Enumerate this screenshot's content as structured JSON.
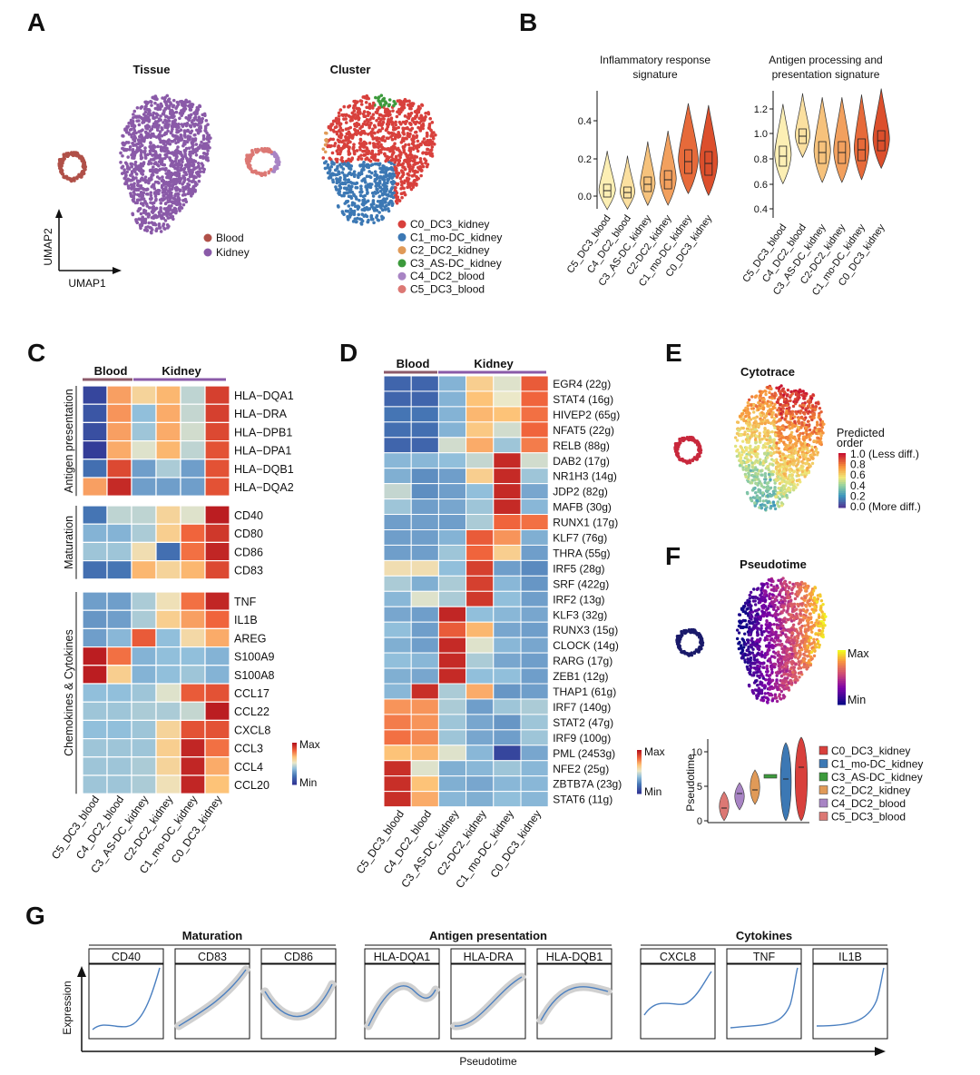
{
  "panels": {
    "a": "A",
    "b": "B",
    "c": "C",
    "d": "D",
    "e": "E",
    "f": "F",
    "g": "G"
  },
  "panelA": {
    "tissue_title": "Tissue",
    "cluster_title": "Cluster",
    "umap_x": "UMAP1",
    "umap_y": "UMAP2",
    "tissue_legend": [
      {
        "label": "Blood",
        "color": "#b05048"
      },
      {
        "label": "Kidney",
        "color": "#8a5aa8"
      }
    ],
    "cluster_legend": [
      {
        "label": "C0_DC3_kidney",
        "color": "#d8403c"
      },
      {
        "label": "C1_mo-DC_kidney",
        "color": "#3c78b4"
      },
      {
        "label": "C2_DC2_kidney",
        "color": "#e09a58"
      },
      {
        "label": "C3_AS-DC_kidney",
        "color": "#3c9a3c"
      },
      {
        "label": "C4_DC2_blood",
        "color": "#a884c4"
      },
      {
        "label": "C5_DC3_blood",
        "color": "#dc7874"
      }
    ]
  },
  "panelB": {
    "chart1_title_l1": "Inflammatory response",
    "chart1_title_l2": "signature",
    "chart2_title_l1": "Antigen processing and",
    "chart2_title_l2": "presentation signature",
    "chart1_ticks": [
      "0.0",
      "0.2",
      "0.4"
    ],
    "chart2_ticks": [
      "0.4",
      "0.6",
      "0.8",
      "1.0",
      "1.2"
    ],
    "categories": [
      "C5_DC3_blood",
      "C4_DC2_blood",
      "C3_AS-DC_kidney",
      "C2-DC2_kidney",
      "C1_mo-DC_kidney",
      "C0_DC3_kidney"
    ]
  },
  "panelC": {
    "group_blood": "Blood",
    "group_kidney": "Kidney",
    "sections": [
      {
        "name": "Antigen presentation",
        "genes": [
          "HLA−DQA1",
          "HLA−DRA",
          "HLA−DPB1",
          "HLA−DPA1",
          "HLA−DQB1",
          "HLA−DQA2"
        ]
      },
      {
        "name": "Maturation",
        "genes": [
          "CD40",
          "CD80",
          "CD86",
          "CD83"
        ]
      },
      {
        "name": "Chemokines & Cytokines",
        "genes": [
          "TNF",
          "IL1B",
          "AREG",
          "S100A9",
          "S100A8",
          "CCL17",
          "CCL22",
          "CXCL8",
          "CCL3",
          "CCL4",
          "CCL20"
        ]
      }
    ],
    "legend_max": "Max",
    "legend_min": "Min",
    "columns": [
      "C5_DC3_blood",
      "C4_DC2_blood",
      "C3_AS-DC_kidney",
      "C2-DC2_kidney",
      "C1_mo-DC_kidney",
      "C0_DC3_kidney"
    ]
  },
  "panelD": {
    "group_blood": "Blood",
    "group_kidney": "Kidney",
    "genes": [
      "EGR4 (22g)",
      "STAT4 (16g)",
      "HIVEP2 (65g)",
      "NFAT5 (22g)",
      "RELB (88g)",
      "DAB2 (17g)",
      "NR1H3 (14g)",
      "JDP2 (82g)",
      "MAFB (30g)",
      "RUNX1 (17g)",
      "KLF7 (76g)",
      "THRA (55g)",
      "IRF5 (28g)",
      "SRF (422g)",
      "IRF2 (13g)",
      "KLF3 (32g)",
      "RUNX3 (15g)",
      "CLOCK (14g)",
      "RARG (17g)",
      "ZEB1 (12g)",
      "THAP1 (61g)",
      "IRF7 (140g)",
      "STAT2 (47g)",
      "IRF9 (100g)",
      "PML (2453g)",
      "NFE2 (25g)",
      "ZBTB7A (23g)",
      "STAT6 (11g)"
    ],
    "legend_max": "Max",
    "legend_min": "Min",
    "columns": [
      "C5_DC3_blood",
      "C4_DC2_blood",
      "C3_AS-DC_kidney",
      "C2-DC2_kidney",
      "C1_mo-DC_kidney",
      "C0_DC3_kidney"
    ]
  },
  "panelE": {
    "title": "Cytotrace",
    "legend_title_l1": "Predicted",
    "legend_title_l2": "order",
    "ticks": [
      "1.0 (Less diff.)",
      "0.8",
      "0.6",
      "0.4",
      "0.2",
      "0.0 (More diff.)"
    ]
  },
  "panelF": {
    "title": "Pseudotime",
    "legend_max": "Max",
    "legend_min": "Min",
    "violin_ylabel": "Pseudotime",
    "violin_ticks": [
      "0",
      "5",
      "10"
    ],
    "legend": [
      {
        "label": "C0_DC3_kidney",
        "color": "#d8403c"
      },
      {
        "label": "C1_mo-DC_kidney",
        "color": "#3c78b4"
      },
      {
        "label": "C3_AS-DC_kidney",
        "color": "#3c9a3c"
      },
      {
        "label": "C2_DC2_kidney",
        "color": "#e09a58"
      },
      {
        "label": "C4_DC2_blood",
        "color": "#a884c4"
      },
      {
        "label": "C5_DC3_blood",
        "color": "#dc7874"
      }
    ]
  },
  "panelG": {
    "groups": [
      {
        "name": "Maturation",
        "genes": [
          "CD40",
          "CD83",
          "CD86"
        ]
      },
      {
        "name": "Antigen presentation",
        "genes": [
          "HLA-DQA1",
          "HLA-DRA",
          "HLA-DQB1"
        ]
      },
      {
        "name": "Cytokines",
        "genes": [
          "CXCL8",
          "TNF",
          "IL1B"
        ]
      }
    ],
    "ylabel": "Expression",
    "xlabel": "Pseudotime"
  }
}
